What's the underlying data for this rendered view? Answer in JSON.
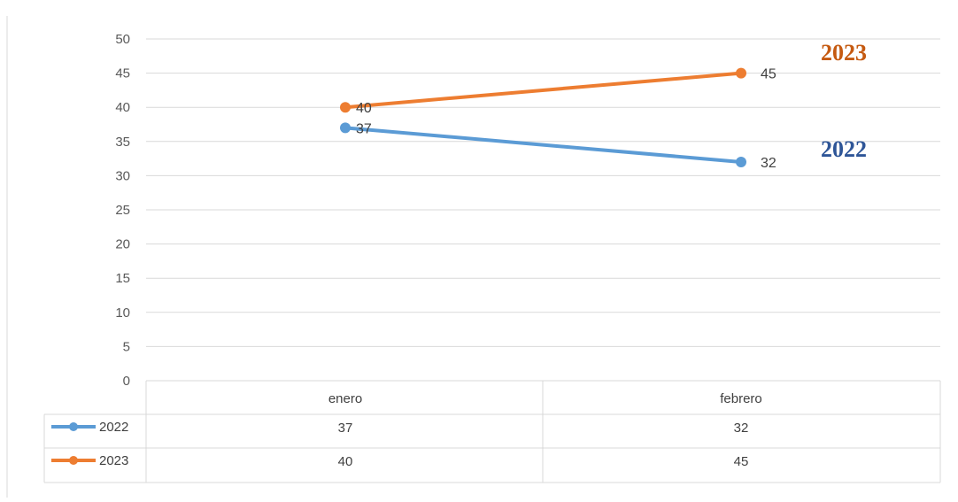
{
  "chart_data": {
    "type": "line",
    "categories": [
      "enero",
      "febrero"
    ],
    "series": [
      {
        "name": "2022",
        "values": [
          37,
          32
        ],
        "color": "#5B9BD5"
      },
      {
        "name": "2023",
        "values": [
          40,
          45
        ],
        "color": "#ED7D31"
      }
    ],
    "title": "",
    "xlabel": "",
    "ylabel": "",
    "ylim": [
      0,
      50
    ],
    "yticks": [
      0,
      5,
      10,
      15,
      20,
      25,
      30,
      35,
      40,
      45,
      50
    ],
    "grid": true,
    "legend": "data-table-left",
    "annotations": [
      {
        "text": "2023",
        "color": "#C55A11"
      },
      {
        "text": "2022",
        "color": "#2E5597"
      }
    ]
  }
}
